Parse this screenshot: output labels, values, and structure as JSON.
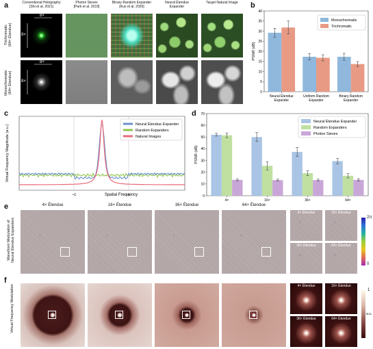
{
  "panel_a": {
    "label": "a",
    "columns": [
      "Conventional Holography\n[Shi et al. 2021]",
      "Photon Sieves\n[Park et al. 2019]",
      "Binary Random Expander\n[Kuo et al. 2020]",
      "Neural Étendue\nExpander",
      "Target Natural Image"
    ],
    "rows": [
      "Trichromatic\n(64× Étendue)",
      "Monochromatic\n(64× Étendue)"
    ],
    "dim_label": "8×"
  },
  "panel_b": {
    "label": "b"
  },
  "panel_c": {
    "label": "c"
  },
  "panel_d": {
    "label": "d"
  },
  "panel_e": {
    "label": "e",
    "ylabel": "Wavefront Modulation of\nNeural Étendue Expanders",
    "columns": [
      "4× Étendue",
      "16× Étendue",
      "36× Étendue",
      "64× Étendue"
    ],
    "insets": [
      "4× Étendue",
      "16× Étendue",
      "36× Étendue",
      "64× Étendue"
    ],
    "cbar_top": "2π",
    "cbar_bottom": "0"
  },
  "panel_f": {
    "label": "f",
    "ylabel": "Virtual Frequency Modulation",
    "insets": [
      "4× Étendue",
      "16× Étendue",
      "36× Étendue",
      "64× Étendue"
    ],
    "cbar_top": "1",
    "cbar_mid": "a.u."
  },
  "chart_data": [
    {
      "id": "b",
      "type": "bar",
      "ylabel": "PSNR (dB)",
      "ylim": [
        0,
        40
      ],
      "yticks": [
        0,
        5,
        10,
        15,
        20,
        25,
        30,
        35,
        40
      ],
      "categories": [
        "Neural Étendue\nExpander",
        "Uniform Random\nExpander",
        "Binary Random\nExpander"
      ],
      "series": [
        {
          "name": "Monochromatic",
          "color": "#8fb8dc",
          "values": [
            29.2,
            17.3,
            17.3
          ],
          "errors": [
            2.2,
            1.6,
            1.7
          ]
        },
        {
          "name": "Trichromatic",
          "color": "#e89a85",
          "values": [
            31.8,
            16.8,
            13.7
          ],
          "errors": [
            3.2,
            1.5,
            1.2
          ]
        }
      ],
      "legend": "top-right",
      "grid": false
    },
    {
      "id": "c",
      "type": "line",
      "ylabel": "Virtual Frequency Magnitude (a.u.)",
      "xlabel": "Spatial Frequency",
      "xticks": [
        "−c",
        "c"
      ],
      "series": [
        {
          "name": "Neural Étendue Expander",
          "color": "#6b8fcf"
        },
        {
          "name": "Random Expanders",
          "color": "#8fc44a"
        },
        {
          "name": "Natural Images",
          "color": "#e86a78"
        }
      ],
      "legend": "top-right"
    },
    {
      "id": "d",
      "type": "bar",
      "ylabel": "PSNR (dB)",
      "ylim": [
        0,
        70
      ],
      "yticks": [
        0,
        10,
        20,
        30,
        40,
        50,
        60,
        70
      ],
      "categories": [
        "4×",
        "16×",
        "36×",
        "64×"
      ],
      "series": [
        {
          "name": "Neural Étendue Expander",
          "color": "#a9c4e4",
          "values": [
            52.0,
            50.0,
            37.3,
            29.5
          ],
          "errors": [
            1.2,
            3.8,
            3.8,
            2.2
          ]
        },
        {
          "name": "Random Expanders",
          "color": "#bfe0a0",
          "values": [
            51.5,
            25.5,
            19.2,
            17.0
          ],
          "errors": [
            2.0,
            3.5,
            2.0,
            1.8
          ]
        },
        {
          "name": "Photon Sieves",
          "color": "#c9a6d8",
          "values": [
            13.5,
            13.3,
            13.3,
            13.5
          ],
          "errors": [
            0.8,
            0.8,
            0.8,
            1.0
          ]
        }
      ],
      "legend": "top-right",
      "grid": false
    }
  ]
}
